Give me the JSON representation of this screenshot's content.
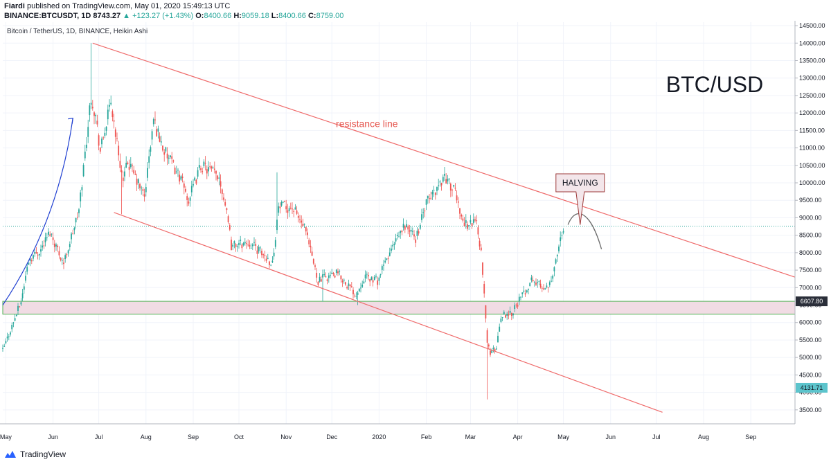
{
  "header": {
    "author": "Fiardi",
    "published_text": "published on TradingView.com, May 01, 2020 15:49:13 UTC",
    "symbol": "BINANCE:BTCUSDT, 1D",
    "last": "8743.27",
    "change": "▲ +123.27 (+1.43%)",
    "o_label": "O:",
    "o_value": "8400.66",
    "h_label": "H:",
    "h_value": "9059.18",
    "l_label": "L:",
    "l_value": "8400.66",
    "c_label": "C:",
    "c_value": "8759.00"
  },
  "footer": {
    "brand": "TradingView"
  },
  "colors": {
    "up": "#26a69a",
    "down": "#ef5350",
    "channel": "#ef6a6a",
    "arrow": "#1f3fd1",
    "zone_fill": "#f1dce4",
    "zone_border": "#4caf50",
    "projection": "#6b6b6b",
    "current_line": "#26a69a",
    "tag_teal": "#5cc4cc"
  },
  "chart_data": {
    "type": "candlestick",
    "chart_type": "Heikin Ashi",
    "title": "Bitcoin / TetherUS, 1D, BINANCE, Heikin Ashi",
    "annotation_title": "BTC/USD",
    "xlabel": "",
    "ylabel": "",
    "x_range": [
      "2019-04-29",
      "2020-09-30"
    ],
    "x_ticks": [
      {
        "date": "2019-05-01",
        "label": "May"
      },
      {
        "date": "2019-06-01",
        "label": "Jun"
      },
      {
        "date": "2019-07-01",
        "label": "Jul"
      },
      {
        "date": "2019-08-01",
        "label": "Aug"
      },
      {
        "date": "2019-09-01",
        "label": "Sep"
      },
      {
        "date": "2019-10-01",
        "label": "Oct"
      },
      {
        "date": "2019-11-01",
        "label": "Nov"
      },
      {
        "date": "2019-12-01",
        "label": "Dec"
      },
      {
        "date": "2020-01-01",
        "label": "2020"
      },
      {
        "date": "2020-02-01",
        "label": "Feb"
      },
      {
        "date": "2020-03-01",
        "label": "Mar"
      },
      {
        "date": "2020-04-01",
        "label": "Apr"
      },
      {
        "date": "2020-05-01",
        "label": "May"
      },
      {
        "date": "2020-06-01",
        "label": "Jun"
      },
      {
        "date": "2020-07-01",
        "label": "Jul"
      },
      {
        "date": "2020-08-01",
        "label": "Aug"
      },
      {
        "date": "2020-09-01",
        "label": "Sep"
      }
    ],
    "ylim": [
      3100,
      14600
    ],
    "y_ticks": [
      3500,
      4000,
      4500,
      5000,
      5500,
      6000,
      6500,
      7000,
      7500,
      8000,
      8500,
      9000,
      9500,
      10000,
      10500,
      11000,
      11500,
      12000,
      12500,
      13000,
      13500,
      14000,
      14500
    ],
    "grid": true,
    "price_tags": [
      {
        "label": "6607.80",
        "value": 6607.8,
        "style": "dark"
      },
      {
        "label": "4131.71",
        "value": 4131.71,
        "style": "teal"
      }
    ],
    "current_price": 8759,
    "series_anchors": [
      {
        "date": "2019-04-29",
        "price": 5200
      },
      {
        "date": "2019-05-11",
        "price": 6600
      },
      {
        "date": "2019-05-16",
        "price": 7800
      },
      {
        "date": "2019-05-24",
        "price": 8100
      },
      {
        "date": "2019-05-30",
        "price": 8600
      },
      {
        "date": "2019-06-08",
        "price": 7700
      },
      {
        "date": "2019-06-18",
        "price": 9200
      },
      {
        "date": "2019-06-26",
        "price": 12500
      },
      {
        "date": "2019-06-29",
        "price": 11900
      },
      {
        "date": "2019-07-02",
        "price": 10900
      },
      {
        "date": "2019-07-09",
        "price": 12300
      },
      {
        "date": "2019-07-17",
        "price": 10000
      },
      {
        "date": "2019-07-20",
        "price": 10600
      },
      {
        "date": "2019-07-31",
        "price": 9600
      },
      {
        "date": "2019-08-06",
        "price": 11800
      },
      {
        "date": "2019-08-13",
        "price": 10900
      },
      {
        "date": "2019-08-23",
        "price": 10200
      },
      {
        "date": "2019-08-29",
        "price": 9500
      },
      {
        "date": "2019-09-06",
        "price": 10500
      },
      {
        "date": "2019-09-18",
        "price": 10200
      },
      {
        "date": "2019-09-24",
        "price": 9000
      },
      {
        "date": "2019-09-26",
        "price": 8200
      },
      {
        "date": "2019-10-08",
        "price": 8300
      },
      {
        "date": "2019-10-23",
        "price": 7700
      },
      {
        "date": "2019-10-27",
        "price": 9300
      },
      {
        "date": "2019-11-05",
        "price": 9300
      },
      {
        "date": "2019-11-13",
        "price": 8700
      },
      {
        "date": "2019-11-22",
        "price": 7200
      },
      {
        "date": "2019-11-27",
        "price": 7300
      },
      {
        "date": "2019-12-05",
        "price": 7400
      },
      {
        "date": "2019-12-17",
        "price": 6800
      },
      {
        "date": "2019-12-22",
        "price": 7300
      },
      {
        "date": "2019-12-31",
        "price": 7200
      },
      {
        "date": "2020-01-07",
        "price": 7900
      },
      {
        "date": "2020-01-18",
        "price": 8800
      },
      {
        "date": "2020-01-25",
        "price": 8400
      },
      {
        "date": "2020-02-01",
        "price": 9400
      },
      {
        "date": "2020-02-13",
        "price": 10200
      },
      {
        "date": "2020-02-20",
        "price": 9700
      },
      {
        "date": "2020-02-26",
        "price": 8800
      },
      {
        "date": "2020-03-05",
        "price": 8900
      },
      {
        "date": "2020-03-08",
        "price": 8000
      },
      {
        "date": "2020-03-12",
        "price": 5500
      },
      {
        "date": "2020-03-14",
        "price": 5100
      },
      {
        "date": "2020-03-18",
        "price": 5300
      },
      {
        "date": "2020-03-21",
        "price": 6200
      },
      {
        "date": "2020-03-28",
        "price": 6300
      },
      {
        "date": "2020-04-06",
        "price": 6900
      },
      {
        "date": "2020-04-10",
        "price": 7200
      },
      {
        "date": "2020-04-20",
        "price": 7000
      },
      {
        "date": "2020-04-25",
        "price": 7500
      },
      {
        "date": "2020-04-29",
        "price": 8400
      },
      {
        "date": "2020-05-01",
        "price": 8759
      }
    ],
    "drawings": {
      "resistance_line": {
        "from": {
          "date": "2019-06-27",
          "price": 14000
        },
        "to": {
          "date": "2020-09-30",
          "price": 7300
        }
      },
      "support_line": {
        "from": {
          "date": "2019-07-11",
          "price": 9150
        },
        "to": {
          "date": "2020-07-05",
          "price": 3430
        }
      },
      "impulse_arrow": {
        "from": {
          "date": "2019-04-29",
          "price": 6500
        },
        "to": {
          "date": "2019-06-14",
          "price": 11850
        }
      },
      "support_zone": {
        "top": 6607.8,
        "bottom": 6240,
        "from": "2019-04-29",
        "to": "2020-09-30"
      },
      "halving_projection": [
        {
          "date": "2020-05-04",
          "price": 8800
        },
        {
          "date": "2020-05-12",
          "price": 9100
        },
        {
          "date": "2020-05-19",
          "price": 8900
        },
        {
          "date": "2020-05-26",
          "price": 8100
        }
      ]
    },
    "annotations": [
      {
        "text": "resistance line",
        "date": "2019-12-24",
        "price": 11600
      },
      {
        "text": "HALVING",
        "date": "2020-05-12",
        "price": 10000,
        "style": "callout",
        "points_to": {
          "date": "2020-05-12",
          "price": 8800
        }
      }
    ]
  }
}
